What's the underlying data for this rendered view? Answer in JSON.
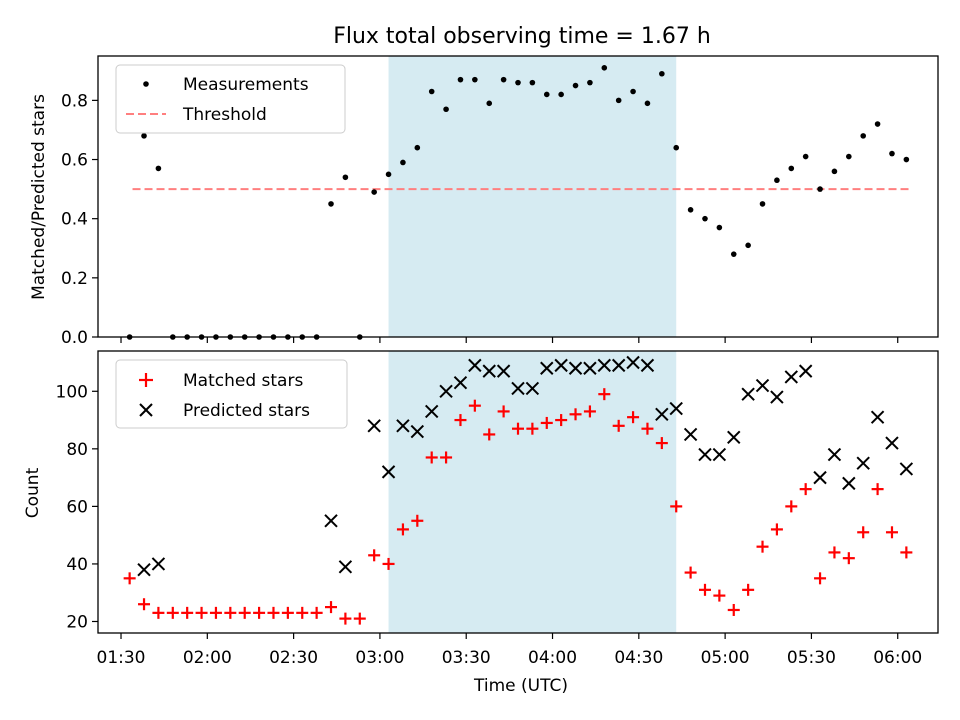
{
  "chart_data": [
    {
      "type": "scatter",
      "title": "Flux total observing time = 1.67 h",
      "xlabel": "",
      "ylabel": "Matched/Predicted stars",
      "xlim": [
        "01:22",
        "06:14"
      ],
      "ylim": [
        0,
        0.95
      ],
      "yticks": [
        0.0,
        0.2,
        0.4,
        0.6,
        0.8
      ],
      "yticklabels": [
        "0.0",
        "0.2",
        "0.4",
        "0.6",
        "0.8"
      ],
      "grid": false,
      "legend": "top-left",
      "shaded_span": [
        "03:03",
        "04:43"
      ],
      "threshold": {
        "name": "Threshold",
        "value": 0.5,
        "x": [
          "01:34",
          "06:04"
        ]
      },
      "series": [
        {
          "name": "Measurements",
          "x": [
            "01:33",
            "01:38",
            "01:43",
            "01:48",
            "01:53",
            "01:58",
            "02:03",
            "02:08",
            "02:13",
            "02:18",
            "02:23",
            "02:28",
            "02:33",
            "02:38",
            "02:43",
            "02:48",
            "02:53",
            "02:58",
            "03:03",
            "03:08",
            "03:13",
            "03:18",
            "03:23",
            "03:28",
            "03:33",
            "03:38",
            "03:43",
            "03:48",
            "03:53",
            "03:58",
            "04:03",
            "04:08",
            "04:13",
            "04:18",
            "04:23",
            "04:28",
            "04:33",
            "04:38",
            "04:43",
            "04:48",
            "04:53",
            "04:58",
            "05:03",
            "05:08",
            "05:13",
            "05:18",
            "05:23",
            "05:28",
            "05:33",
            "05:38",
            "05:43",
            "05:48",
            "05:53",
            "05:58",
            "06:03"
          ],
          "y": [
            0.0,
            0.68,
            0.57,
            0.0,
            0.0,
            0.0,
            0.0,
            0.0,
            0.0,
            0.0,
            0.0,
            0.0,
            0.0,
            0.0,
            0.45,
            0.54,
            0.0,
            0.49,
            0.55,
            0.59,
            0.64,
            0.83,
            0.77,
            0.87,
            0.87,
            0.79,
            0.87,
            0.86,
            0.86,
            0.82,
            0.82,
            0.85,
            0.86,
            0.91,
            0.8,
            0.83,
            0.79,
            0.89,
            0.64,
            0.43,
            0.4,
            0.37,
            0.28,
            0.31,
            0.45,
            0.53,
            0.57,
            0.61,
            0.5,
            0.56,
            0.61,
            0.68,
            0.72,
            0.62,
            0.6
          ]
        }
      ]
    },
    {
      "type": "scatter",
      "title": "",
      "xlabel": "Time (UTC)",
      "ylabel": "Count",
      "xlim": [
        "01:22",
        "06:14"
      ],
      "ylim": [
        16,
        114
      ],
      "xticks": [
        "01:30",
        "02:00",
        "02:30",
        "03:00",
        "03:30",
        "04:00",
        "04:30",
        "05:00",
        "05:30",
        "06:00"
      ],
      "yticks": [
        20,
        40,
        60,
        80,
        100
      ],
      "yticklabels": [
        "20",
        "40",
        "60",
        "80",
        "100"
      ],
      "grid": false,
      "legend": "top-left",
      "shaded_span": [
        "03:03",
        "04:43"
      ],
      "series": [
        {
          "name": "Matched stars",
          "marker": "+",
          "x": [
            "01:33",
            "01:38",
            "01:43",
            "01:48",
            "01:53",
            "01:58",
            "02:03",
            "02:08",
            "02:13",
            "02:18",
            "02:23",
            "02:28",
            "02:33",
            "02:38",
            "02:43",
            "02:48",
            "02:53",
            "02:58",
            "03:03",
            "03:08",
            "03:13",
            "03:18",
            "03:23",
            "03:28",
            "03:33",
            "03:38",
            "03:43",
            "03:48",
            "03:53",
            "03:58",
            "04:03",
            "04:08",
            "04:13",
            "04:18",
            "04:23",
            "04:28",
            "04:33",
            "04:38",
            "04:43",
            "04:48",
            "04:53",
            "04:58",
            "05:03",
            "05:08",
            "05:13",
            "05:18",
            "05:23",
            "05:28",
            "05:33",
            "05:38",
            "05:43",
            "05:48",
            "05:53",
            "05:58",
            "06:03"
          ],
          "y": [
            35,
            26,
            23,
            23,
            23,
            23,
            23,
            23,
            23,
            23,
            23,
            23,
            23,
            23,
            25,
            21,
            21,
            43,
            40,
            52,
            55,
            77,
            77,
            90,
            95,
            85,
            93,
            87,
            87,
            89,
            90,
            92,
            93,
            99,
            88,
            91,
            87,
            82,
            60,
            37,
            31,
            29,
            24,
            31,
            46,
            52,
            60,
            66,
            35,
            44,
            42,
            51,
            66,
            51,
            44
          ]
        },
        {
          "name": "Predicted stars",
          "marker": "x",
          "x": [
            "01:38",
            "01:43",
            "02:43",
            "02:48",
            "02:58",
            "03:03",
            "03:08",
            "03:13",
            "03:18",
            "03:23",
            "03:28",
            "03:33",
            "03:38",
            "03:43",
            "03:48",
            "03:53",
            "03:58",
            "04:03",
            "04:08",
            "04:13",
            "04:18",
            "04:23",
            "04:28",
            "04:33",
            "04:38",
            "04:43",
            "04:48",
            "04:53",
            "04:58",
            "05:03",
            "05:08",
            "05:13",
            "05:18",
            "05:23",
            "05:28",
            "05:33",
            "05:38",
            "05:43",
            "05:48",
            "05:53",
            "05:58",
            "06:03"
          ],
          "y": [
            38,
            40,
            55,
            39,
            88,
            72,
            88,
            86,
            93,
            100,
            103,
            109,
            107,
            107,
            101,
            101,
            108,
            109,
            108,
            108,
            109,
            109,
            110,
            109,
            92,
            94,
            85,
            78,
            78,
            84,
            99,
            102,
            98,
            105,
            107,
            70,
            78,
            68,
            75,
            91,
            82,
            73
          ]
        }
      ]
    }
  ]
}
